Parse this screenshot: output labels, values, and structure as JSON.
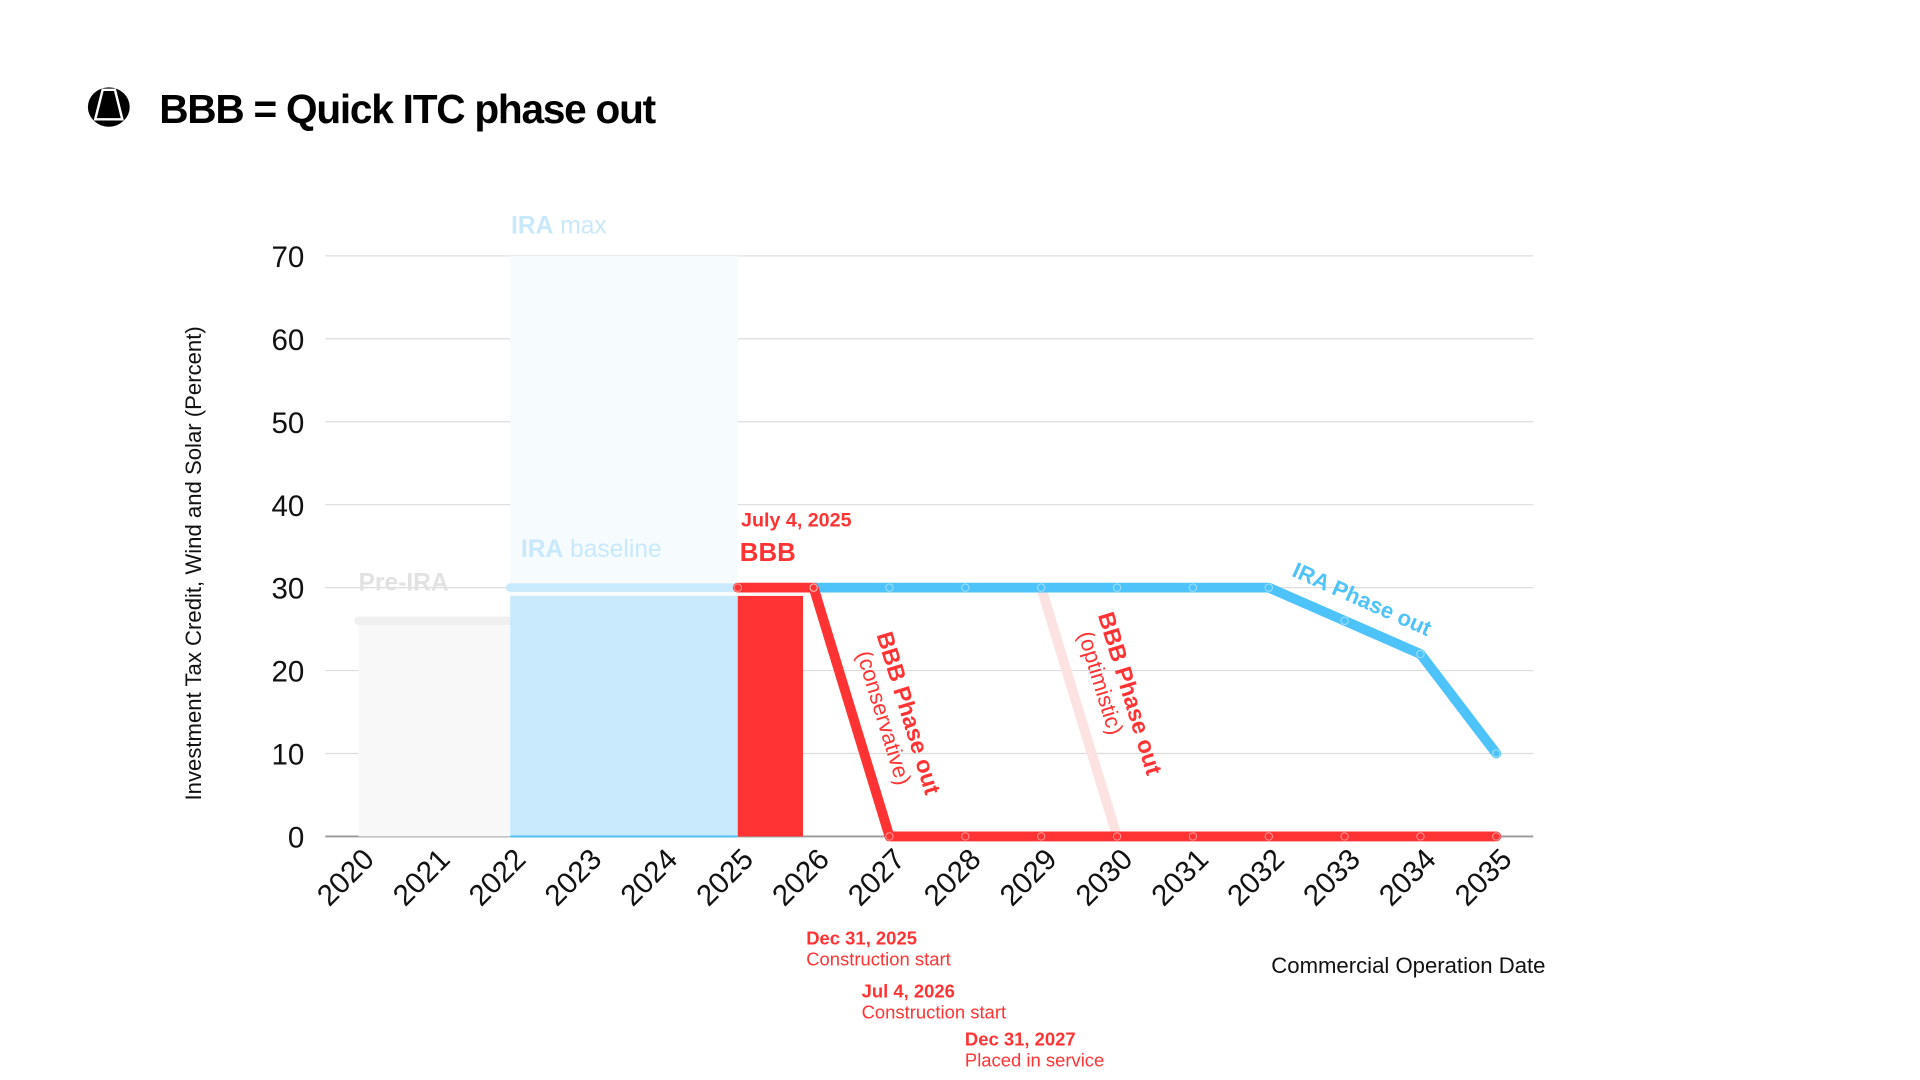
{
  "header": {
    "title": "BBB = Quick ITC phase out",
    "logo_icon": "helmet-logo-icon"
  },
  "chart_data": {
    "type": "line",
    "title": "BBB = Quick ITC phase out",
    "xlabel": "Commercial Operation Date",
    "ylabel": "Investment Tax Credit, Wind and Solar (Percent)",
    "xlim": [
      2020,
      2035
    ],
    "ylim": [
      0,
      70
    ],
    "x_ticks": [
      "2020",
      "2021",
      "2022",
      "2023",
      "2024",
      "2025",
      "2026",
      "2027",
      "2028",
      "2029",
      "2030",
      "2031",
      "2032",
      "2033",
      "2034",
      "2035"
    ],
    "y_ticks": [
      0,
      10,
      20,
      30,
      40,
      50,
      60,
      70
    ],
    "grid": true,
    "colors": {
      "ira": "#4dc3fa",
      "ira_light": "#c8eafc",
      "ira_max": "#f6fbfe",
      "bbb": "#ff3333",
      "bbb_optimistic": "#fde2e2",
      "pre_ira": "#f8f8f8"
    },
    "areas": [
      {
        "name": "Pre-IRA",
        "x": [
          2020,
          2022
        ],
        "value": 26
      },
      {
        "name_bold": "IRA",
        "name_rest": "max",
        "x": [
          2022,
          2025
        ],
        "value": 70
      },
      {
        "name_bold": "IRA",
        "name_rest": "baseline",
        "x": [
          2022,
          2025
        ],
        "value": 30
      },
      {
        "name": "BBB",
        "x": [
          2025,
          2025.86
        ],
        "value": 29
      }
    ],
    "series": [
      {
        "name": "IRA Phase out",
        "x": [
          2026,
          2027,
          2028,
          2029,
          2030,
          2031,
          2032,
          2033,
          2034,
          2035
        ],
        "y": [
          30,
          30,
          30,
          30,
          30,
          30,
          30,
          26,
          22,
          10
        ]
      },
      {
        "name": "BBB Phase out",
        "note": "(conservative)",
        "x": [
          2025,
          2026,
          2027,
          2028,
          2029,
          2030,
          2031,
          2032,
          2033,
          2034,
          2035
        ],
        "y": [
          30,
          30,
          0,
          0,
          0,
          0,
          0,
          0,
          0,
          0,
          0
        ]
      },
      {
        "name": "BBB Phase out",
        "note": "(optimistic)",
        "x": [
          2029,
          2030
        ],
        "y": [
          30,
          0
        ]
      }
    ],
    "annotations": {
      "bbb_date": "July 4, 2025",
      "bbb_label": "BBB",
      "milestones": [
        {
          "date": "Dec 31, 2025",
          "text": "Construction start"
        },
        {
          "date": "Jul 4, 2026",
          "text": "Construction start"
        },
        {
          "date": "Dec 31, 2027",
          "text": "Placed in service"
        }
      ]
    }
  }
}
